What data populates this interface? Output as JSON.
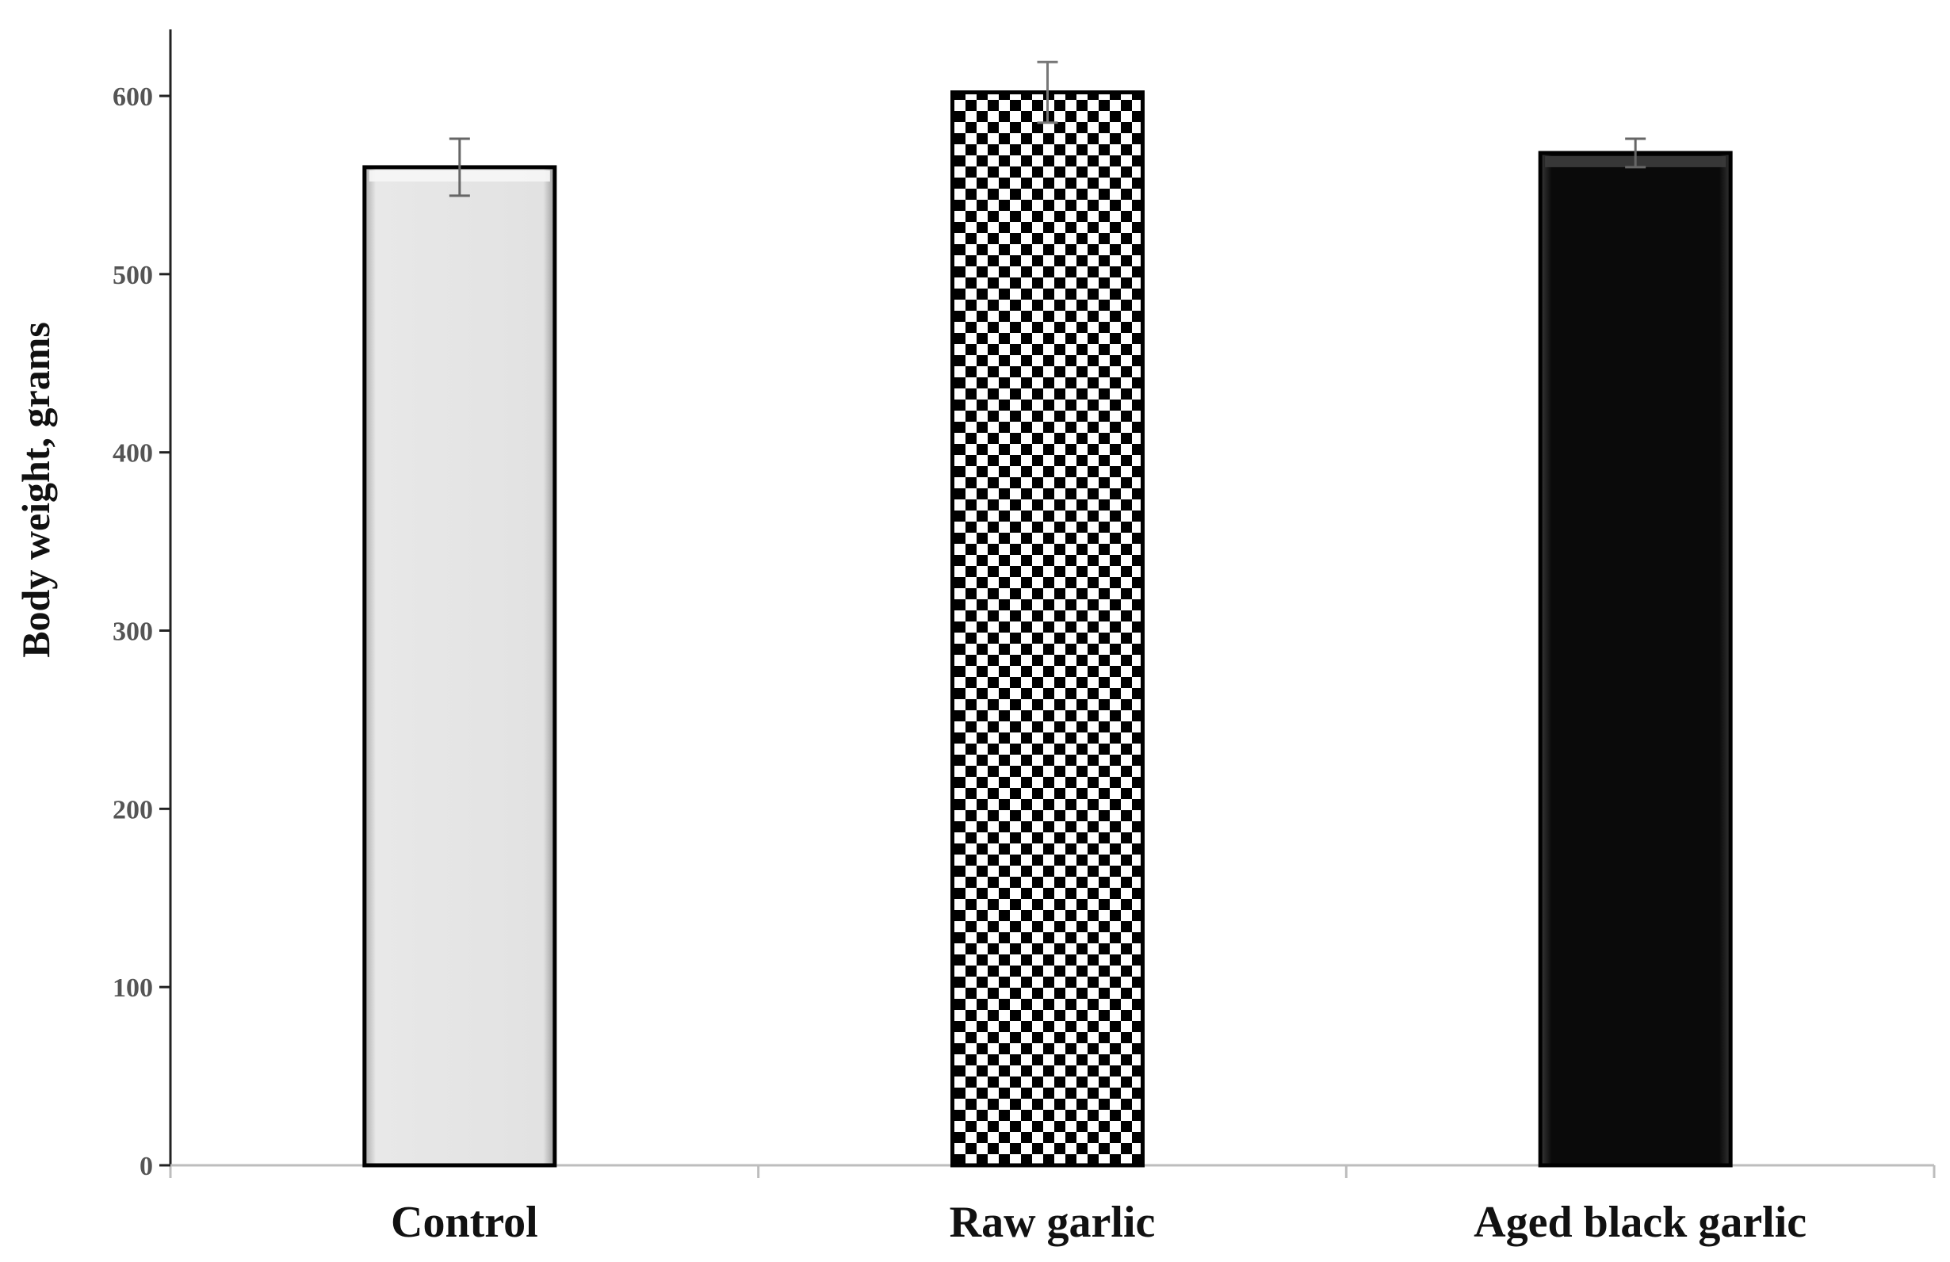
{
  "chart_data": {
    "type": "bar",
    "title": "",
    "xlabel": "",
    "ylabel": "Body weight, grams",
    "ylim": [
      0,
      640
    ],
    "yticks": [
      0,
      100,
      200,
      300,
      400,
      500,
      600
    ],
    "ytick_labels": [
      "0",
      "100",
      "200",
      "300",
      "400",
      "500",
      "600"
    ],
    "categories": [
      "Control",
      "Raw garlic",
      "Aged black garlic"
    ],
    "values": [
      560,
      602,
      568
    ],
    "errors": [
      16,
      17,
      8
    ],
    "grid": false,
    "legend": "none",
    "bar_styles": [
      "light-gray beveled",
      "black-white checkerboard",
      "black beveled"
    ],
    "colors": {
      "control": "#e3e3e3",
      "aged_black": "#0a0a0a",
      "axis": "#111111"
    }
  }
}
